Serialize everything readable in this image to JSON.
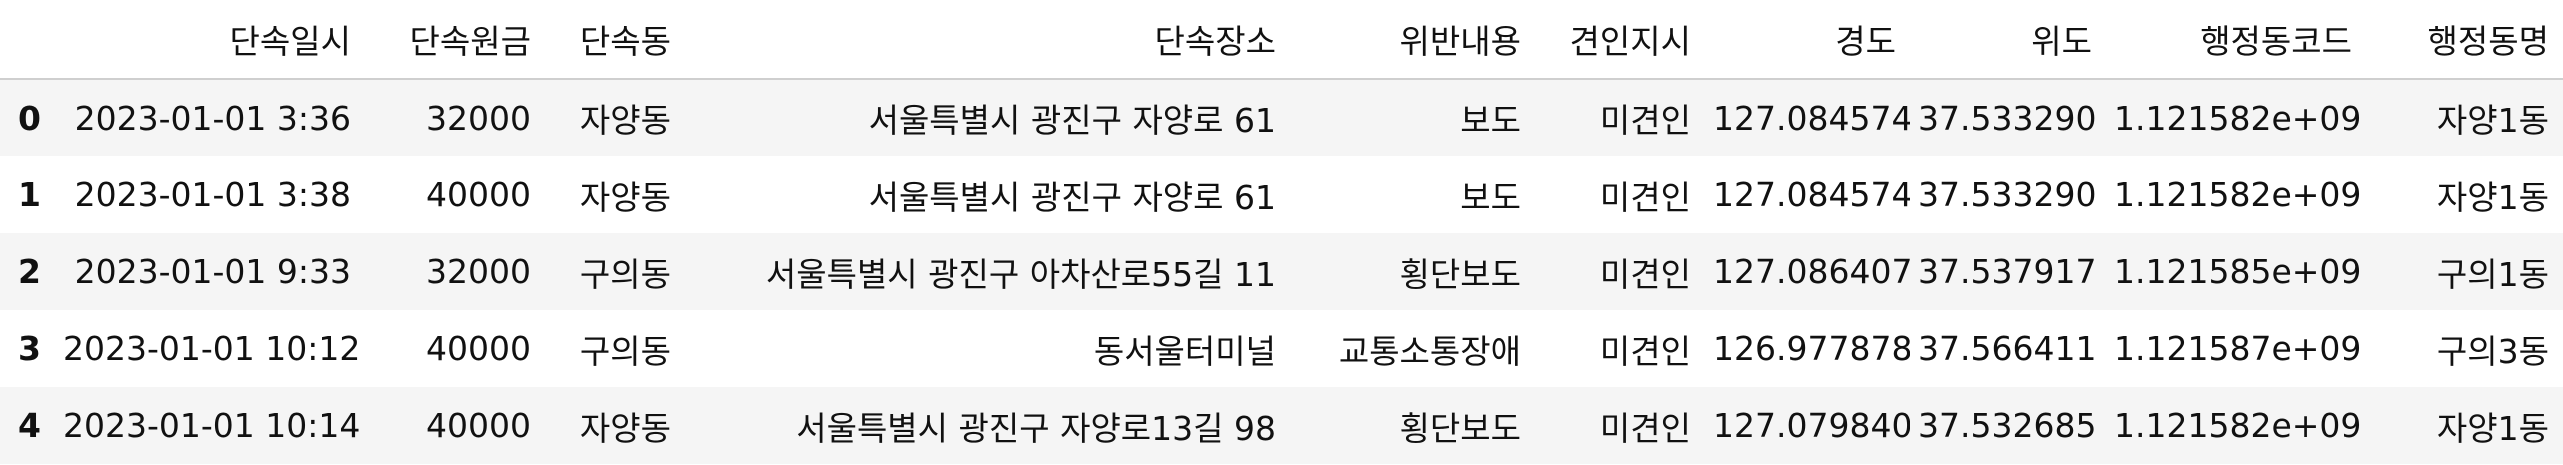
{
  "table": {
    "columns": [
      {
        "key": "index",
        "label": ""
      },
      {
        "key": "datetime",
        "label": "단속일시"
      },
      {
        "key": "fine",
        "label": "단속원금"
      },
      {
        "key": "dong",
        "label": "단속동"
      },
      {
        "key": "place",
        "label": "단속장소"
      },
      {
        "key": "violation",
        "label": "위반내용"
      },
      {
        "key": "tow",
        "label": "견인지시"
      },
      {
        "key": "lon",
        "label": "경도"
      },
      {
        "key": "lat",
        "label": "위도"
      },
      {
        "key": "admin_code",
        "label": "행정동코드"
      },
      {
        "key": "admin_dong",
        "label": "행정동명"
      }
    ],
    "rows": [
      {
        "index": "0",
        "datetime": "2023-01-01 3:36",
        "fine": "32000",
        "dong": "자양동",
        "place": "서울특별시 광진구 자양로 61",
        "violation": "보도",
        "tow": "미견인",
        "lon": "127.084574",
        "lat": "37.533290",
        "admin_code": "1.121582e+09",
        "admin_dong": "자양1동"
      },
      {
        "index": "1",
        "datetime": "2023-01-01 3:38",
        "fine": "40000",
        "dong": "자양동",
        "place": "서울특별시 광진구 자양로 61",
        "violation": "보도",
        "tow": "미견인",
        "lon": "127.084574",
        "lat": "37.533290",
        "admin_code": "1.121582e+09",
        "admin_dong": "자양1동"
      },
      {
        "index": "2",
        "datetime": "2023-01-01 9:33",
        "fine": "32000",
        "dong": "구의동",
        "place": "서울특별시 광진구 아차산로55길 11",
        "violation": "횡단보도",
        "tow": "미견인",
        "lon": "127.086407",
        "lat": "37.537917",
        "admin_code": "1.121585e+09",
        "admin_dong": "구의1동"
      },
      {
        "index": "3",
        "datetime": "2023-01-01 10:12",
        "fine": "40000",
        "dong": "구의동",
        "place": "동서울터미널",
        "violation": "교통소통장애",
        "tow": "미견인",
        "lon": "126.977878",
        "lat": "37.566411",
        "admin_code": "1.121587e+09",
        "admin_dong": "구의3동"
      },
      {
        "index": "4",
        "datetime": "2023-01-01 10:14",
        "fine": "40000",
        "dong": "자양동",
        "place": "서울특별시 광진구 자양로13길 98",
        "violation": "횡단보도",
        "tow": "미견인",
        "lon": "127.079840",
        "lat": "37.532685",
        "admin_code": "1.121582e+09",
        "admin_dong": "자양1동"
      }
    ]
  }
}
